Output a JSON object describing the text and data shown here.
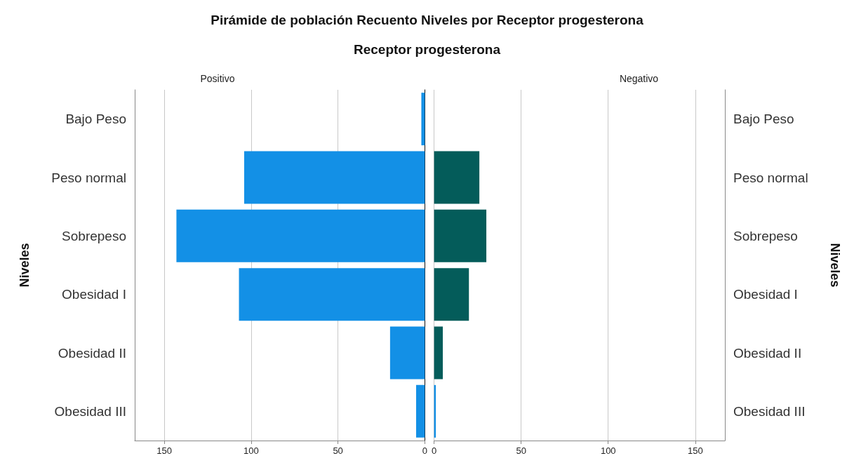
{
  "chart_data": [
    {
      "type": "bar",
      "orientation": "horizontal",
      "title": "Pirámide de población Recuento Niveles  por Receptor progesterona",
      "subtitle": "Receptor progesterona",
      "ylabel": "Niveles",
      "categories": [
        "Bajo Peso",
        "Peso normal",
        "Sobrepeso",
        "Obesidad I",
        "Obesidad II",
        "Obesidad III"
      ],
      "series": [
        {
          "name": "Positivo",
          "color": "#1390e6",
          "values": [
            2,
            104,
            143,
            107,
            20,
            5
          ]
        }
      ],
      "xlim": [
        167,
        0
      ],
      "xticks": [
        150,
        100,
        50,
        0
      ],
      "grid": "x",
      "legend": false
    },
    {
      "type": "bar",
      "orientation": "horizontal",
      "y2label": "Niveles",
      "categories": [
        "Bajo Peso",
        "Peso normal",
        "Sobrepeso",
        "Obesidad I",
        "Obesidad II",
        "Obesidad III"
      ],
      "series": [
        {
          "name": "Negativo",
          "colors": [
            "#045c5a",
            "#045c5a",
            "#045c5a",
            "#045c5a",
            "#045c5a",
            "#1390e6"
          ],
          "values": [
            0,
            26,
            30,
            20,
            5,
            1
          ]
        }
      ],
      "xlim": [
        0,
        167
      ],
      "xticks": [
        0,
        50,
        100,
        150
      ],
      "grid": "x",
      "legend": false
    }
  ]
}
